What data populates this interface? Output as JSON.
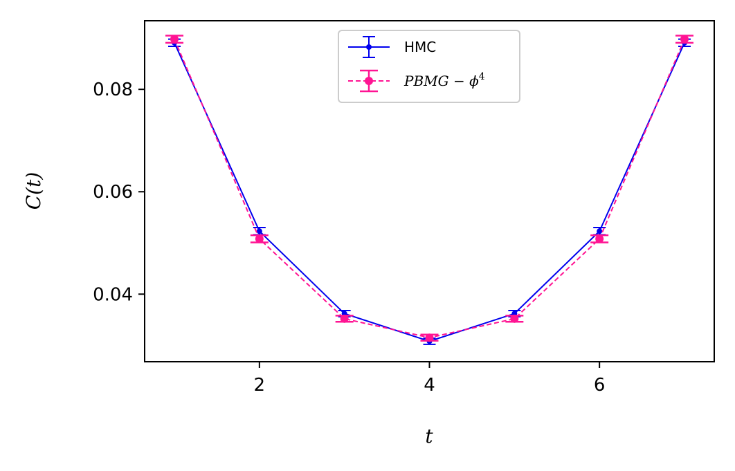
{
  "chart_data": {
    "type": "line",
    "xlabel": "t",
    "ylabel": "C(t)",
    "xlim": [
      0.65,
      7.35
    ],
    "ylim": [
      0.0268,
      0.0934
    ],
    "xticks": [
      2,
      4,
      6
    ],
    "yticks": [
      0.04,
      0.06,
      0.08
    ],
    "xtick_labels": [
      "2",
      "4",
      "6"
    ],
    "ytick_labels": [
      "0.04",
      "0.06",
      "0.08"
    ],
    "grid": false,
    "legend_position": "top-center",
    "x": [
      1,
      2,
      3,
      4,
      5,
      6,
      7
    ],
    "series": [
      {
        "name": "HMC",
        "color": "#0000ee",
        "line_style": "solid",
        "marker": "circle",
        "values": [
          0.0891,
          0.0523,
          0.0362,
          0.0308,
          0.0362,
          0.0523,
          0.0891
        ],
        "errors": [
          0.0007,
          0.0007,
          0.0006,
          0.0006,
          0.0006,
          0.0007,
          0.0007
        ]
      },
      {
        "name": "PBMG - φ⁴",
        "name_parts": {
          "base": "PBMG − ϕ",
          "sup": "4"
        },
        "color": "#ff1493",
        "line_style": "dashed",
        "marker": "circle",
        "values": [
          0.0898,
          0.0508,
          0.0352,
          0.0315,
          0.0352,
          0.0508,
          0.0898
        ],
        "errors": [
          0.0007,
          0.0007,
          0.0006,
          0.0006,
          0.0006,
          0.0007,
          0.0007
        ]
      }
    ]
  }
}
